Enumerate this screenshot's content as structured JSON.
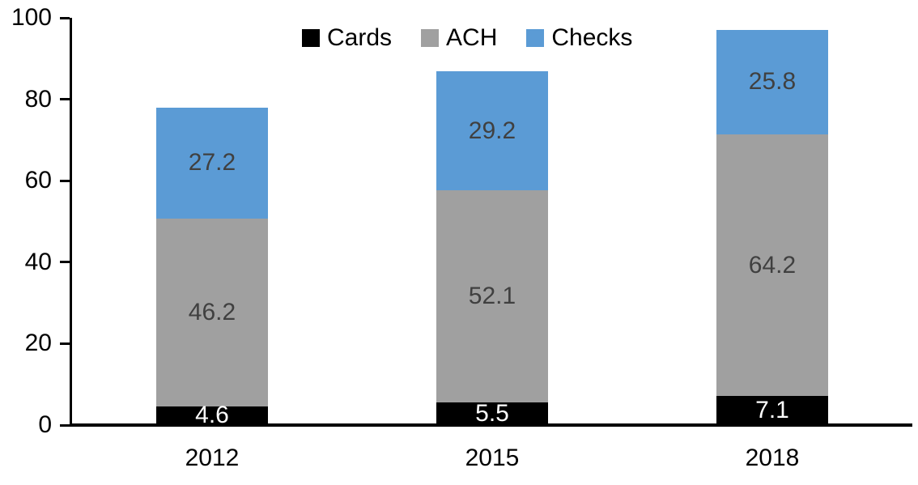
{
  "chart_data": {
    "type": "bar",
    "stacked": true,
    "categories": [
      "2012",
      "2015",
      "2018"
    ],
    "series": [
      {
        "name": "Cards",
        "color": "#000000",
        "label_color": "#FFFFFF",
        "values": [
          4.6,
          5.5,
          7.1
        ]
      },
      {
        "name": "ACH",
        "color": "#A0A0A0",
        "label_color": "#404040",
        "values": [
          46.2,
          52.1,
          64.2
        ]
      },
      {
        "name": "Checks",
        "color": "#5B9BD5",
        "label_color": "#404040",
        "values": [
          27.2,
          29.2,
          25.8
        ]
      }
    ],
    "y_axis": {
      "min": 0,
      "max": 100,
      "ticks": [
        0,
        20,
        40,
        60,
        80,
        100
      ]
    },
    "grid": false,
    "data_labels": true,
    "legend": {
      "position": "top-center",
      "entries": [
        "Cards",
        "ACH",
        "Checks"
      ]
    },
    "axis_color": "#000000",
    "background": "#FFFFFF"
  }
}
